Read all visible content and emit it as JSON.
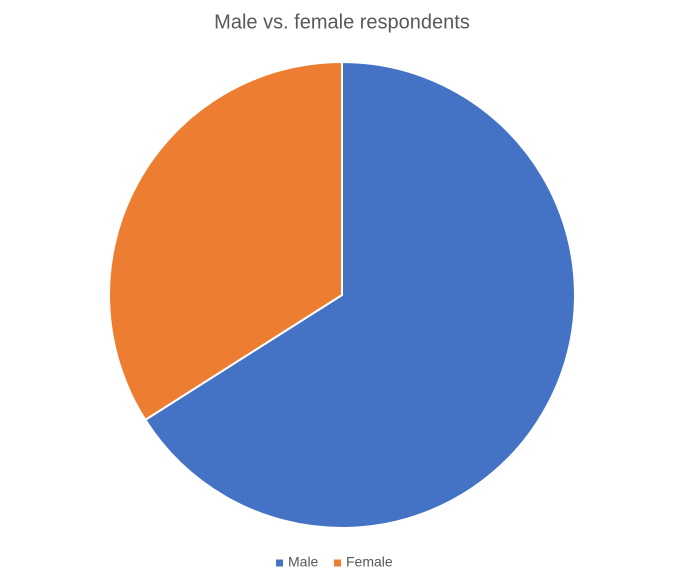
{
  "chart_data": {
    "type": "pie",
    "title": "Male vs. female respondents",
    "categories": [
      "Male",
      "Female"
    ],
    "values": [
      66,
      34
    ],
    "colors": [
      "#4472c4",
      "#ed7d31"
    ],
    "legend": "bottom"
  }
}
